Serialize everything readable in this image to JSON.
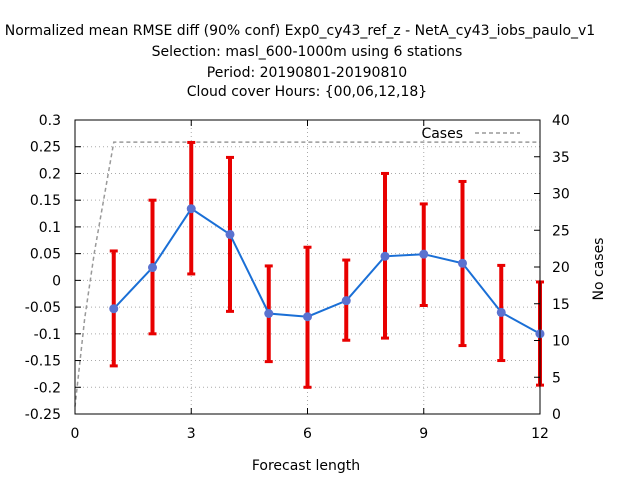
{
  "chart_data": {
    "type": "line",
    "title_lines": [
      "Normalized mean RMSE diff (90% conf) Exp0_cy43_ref_z - NetA_cy43_iobs_paulo_v1",
      "Selection: masl_600-1000m using     6 stations",
      "Period: 20190801-20190810",
      "Cloud cover   Hours: {00,06,12,18}"
    ],
    "xlabel": "Forecast length",
    "ylabel_right": "No cases",
    "xlim": [
      0,
      12
    ],
    "ylim": [
      -0.25,
      0.3
    ],
    "y2lim": [
      0,
      40
    ],
    "x_ticks": [
      "0",
      "3",
      "6",
      "9",
      "12"
    ],
    "x_tick_values": [
      0,
      3,
      6,
      9,
      12
    ],
    "y_ticks": [
      "-0.25",
      "-0.2",
      "-0.15",
      "-0.1",
      "-0.05",
      "0",
      "0.05",
      "0.1",
      "0.15",
      "0.2",
      "0.25",
      "0.3"
    ],
    "y_tick_values": [
      -0.25,
      -0.2,
      -0.15,
      -0.1,
      -0.05,
      0,
      0.05,
      0.1,
      0.15,
      0.2,
      0.25,
      0.3
    ],
    "y2_ticks": [
      "0",
      "5",
      "10",
      "15",
      "20",
      "25",
      "30",
      "35",
      "40"
    ],
    "y2_tick_values": [
      0,
      5,
      10,
      15,
      20,
      25,
      30,
      35,
      40
    ],
    "grid": true,
    "series": [
      {
        "color": "#1a6fd6",
        "marker_color": "#5a72d0",
        "errorbar_color": "#e80000",
        "x": [
          1,
          2,
          3,
          4,
          5,
          6,
          7,
          8,
          9,
          10,
          11,
          12
        ],
        "y": [
          -0.053,
          0.024,
          0.134,
          0.086,
          -0.062,
          -0.068,
          -0.038,
          0.045,
          0.049,
          0.032,
          -0.06,
          -0.1
        ],
        "lower": [
          -0.16,
          -0.1,
          0.012,
          -0.058,
          -0.152,
          -0.2,
          -0.112,
          -0.108,
          -0.047,
          -0.122,
          -0.15,
          -0.196
        ],
        "upper": [
          0.055,
          0.15,
          0.258,
          0.23,
          0.027,
          0.062,
          0.038,
          0.2,
          0.143,
          0.185,
          0.028,
          -0.003
        ]
      },
      {
        "name": "Cases",
        "axis": "right",
        "color": "#999999",
        "x": [
          0,
          0.25,
          0.5,
          1,
          2,
          3,
          4,
          5,
          6,
          7,
          8,
          9,
          10,
          11,
          12
        ],
        "y": [
          1,
          13,
          22,
          37,
          37,
          37,
          37,
          37,
          37,
          37,
          37,
          37,
          37,
          37,
          37
        ]
      }
    ],
    "legend": "top-right"
  }
}
